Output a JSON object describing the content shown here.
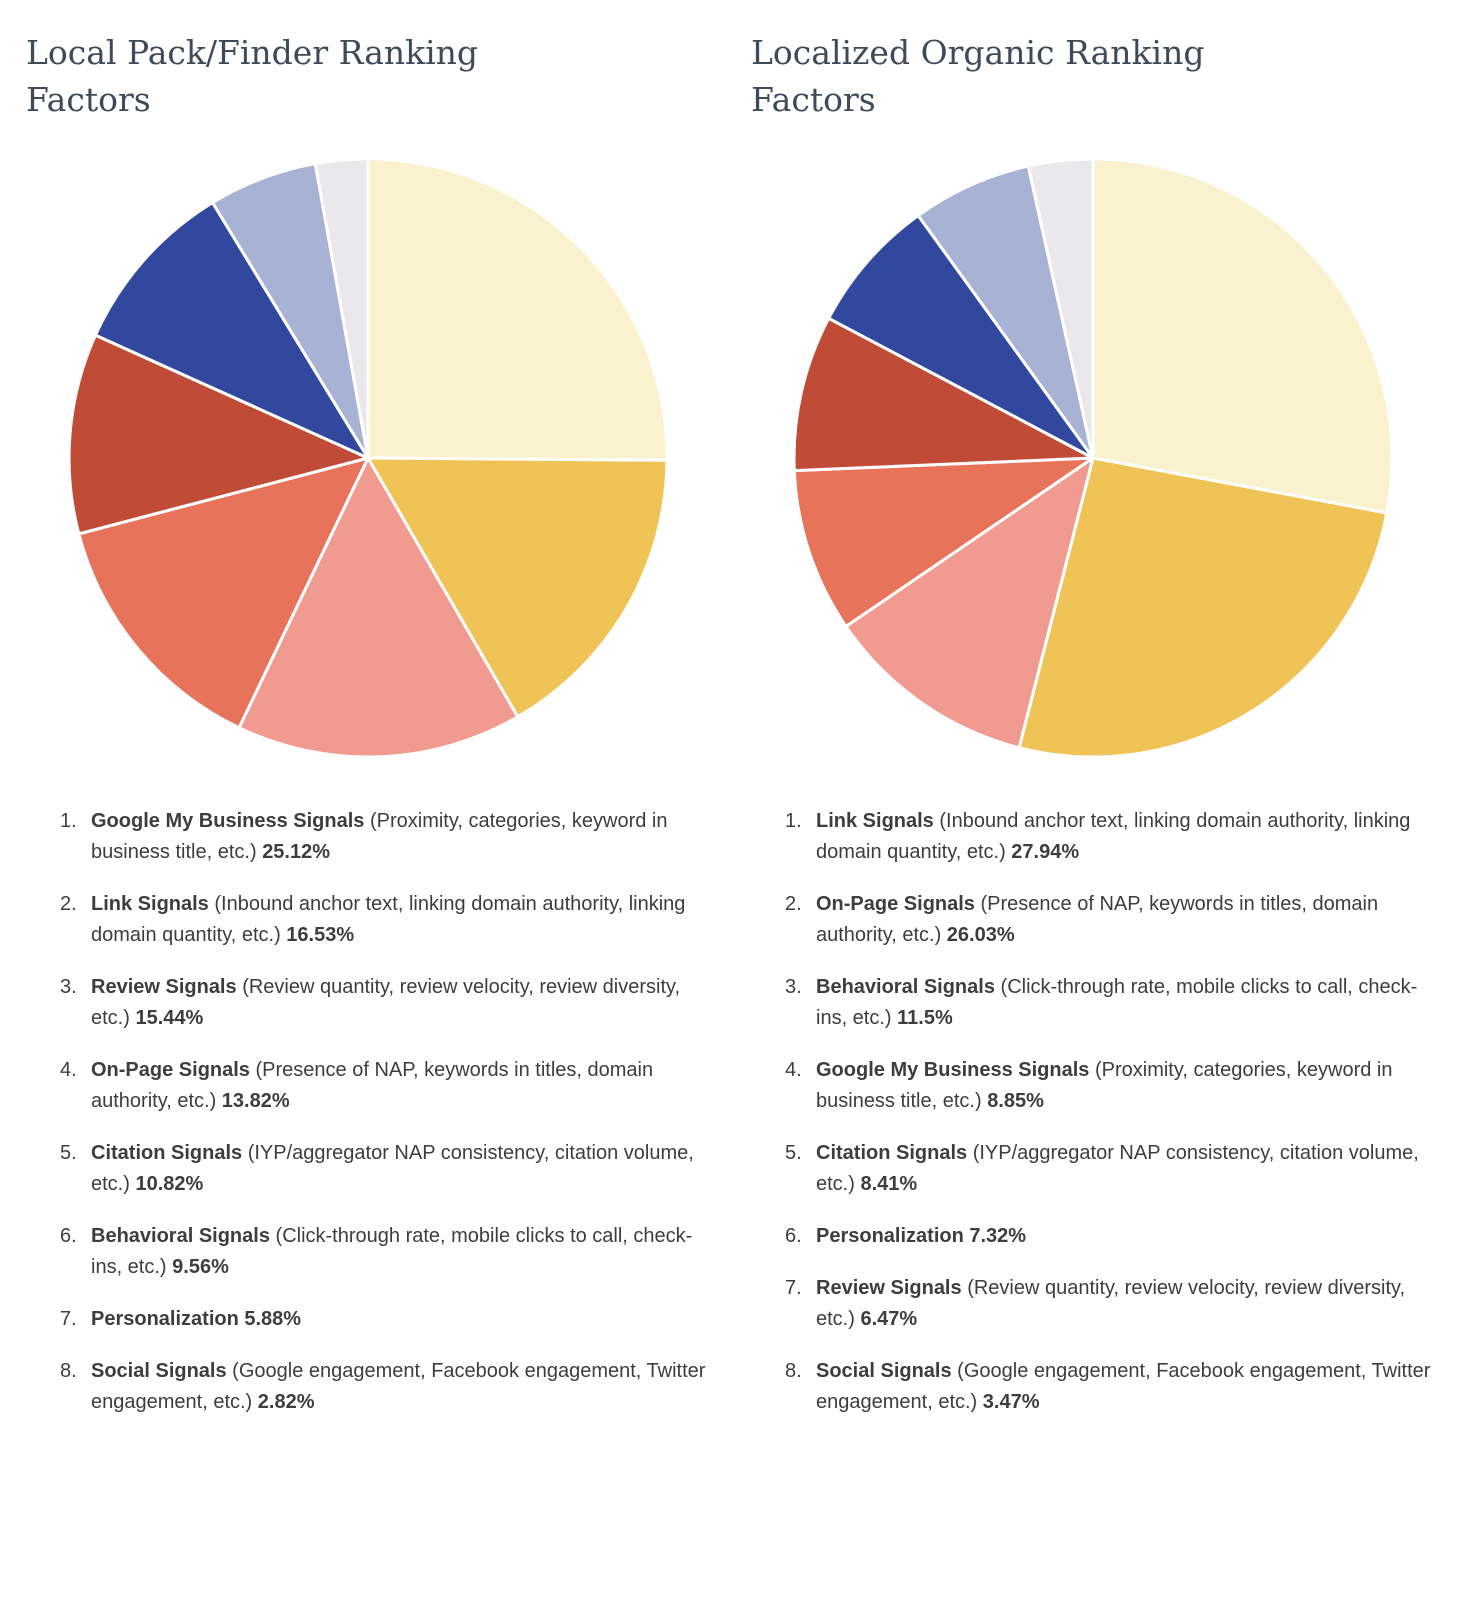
{
  "chart_data": [
    {
      "type": "pie",
      "title": "Local Pack/Finder Ranking Factors",
      "start_angle": "top",
      "direction": "clockwise",
      "legend_position": "bottom",
      "slices": [
        {
          "num": "1.",
          "label": "Google My Business Signals",
          "desc": "(Proximity, categories, keyword in business title, etc.)",
          "value": 25.12,
          "pct_label": "25.12%",
          "color": "#faf2ce"
        },
        {
          "num": "2.",
          "label": "Link Signals",
          "desc": "(Inbound anchor text, linking domain authority, linking domain quantity, etc.)",
          "value": 16.53,
          "pct_label": "16.53%",
          "color": "#f0c357"
        },
        {
          "num": "3.",
          "label": "Review Signals",
          "desc": "(Review quantity, review velocity, review diversity, etc.)",
          "value": 15.44,
          "pct_label": "15.44%",
          "color": "#f19a8f"
        },
        {
          "num": "4.",
          "label": "On-Page Signals",
          "desc": "(Presence of NAP, keywords in titles, domain authority, etc.)",
          "value": 13.82,
          "pct_label": "13.82%",
          "color": "#e8735b"
        },
        {
          "num": "5.",
          "label": "Citation Signals",
          "desc": "(IYP/aggregator NAP consistency, citation volume, etc.)",
          "value": 10.82,
          "pct_label": "10.82%",
          "color": "#c04c38"
        },
        {
          "num": "6.",
          "label": "Behavioral Signals",
          "desc": "(Click-through rate, mobile clicks to call, check-ins, etc.)",
          "value": 9.56,
          "pct_label": "9.56%",
          "color": "#32489e"
        },
        {
          "num": "7.",
          "label": "Personalization",
          "desc": "",
          "value": 5.88,
          "pct_label": "5.88%",
          "color": "#a8b2d5"
        },
        {
          "num": "8.",
          "label": "Social Signals",
          "desc": "(Google engagement, Facebook engagement, Twitter engagement, etc.)",
          "value": 2.82,
          "pct_label": "2.82%",
          "color": "#e9e9eb"
        }
      ]
    },
    {
      "type": "pie",
      "title": "Localized Organic Ranking Factors",
      "start_angle": "top",
      "direction": "clockwise",
      "legend_position": "bottom",
      "slices": [
        {
          "num": "1.",
          "label": "Link Signals",
          "desc": "(Inbound anchor text, linking domain authority, linking domain quantity, etc.)",
          "value": 27.94,
          "pct_label": "27.94%",
          "color": "#faf2ce"
        },
        {
          "num": "2.",
          "label": "On-Page Signals",
          "desc": "(Presence of NAP, keywords in titles, domain authority, etc.)",
          "value": 26.03,
          "pct_label": "26.03%",
          "color": "#f0c357"
        },
        {
          "num": "3.",
          "label": "Behavioral Signals",
          "desc": "(Click-through rate, mobile clicks to call, check-ins, etc.)",
          "value": 11.5,
          "pct_label": "11.5%",
          "color": "#f19a8f"
        },
        {
          "num": "4.",
          "label": "Google My Business Signals",
          "desc": "(Proximity, categories, keyword in business title, etc.)",
          "value": 8.85,
          "pct_label": "8.85%",
          "color": "#e8735b"
        },
        {
          "num": "5.",
          "label": "Citation Signals",
          "desc": "(IYP/aggregator NAP consistency, citation volume, etc.)",
          "value": 8.41,
          "pct_label": "8.41%",
          "color": "#c04c38"
        },
        {
          "num": "6.",
          "label": "Personalization",
          "desc": "",
          "value": 7.32,
          "pct_label": "7.32%",
          "color": "#32489e"
        },
        {
          "num": "7.",
          "label": "Review Signals",
          "desc": "(Review quantity, review velocity, review diversity, etc.)",
          "value": 6.47,
          "pct_label": "6.47%",
          "color": "#a8b2d5"
        },
        {
          "num": "8.",
          "label": "Social Signals",
          "desc": "(Google engagement, Facebook engagement, Twitter engagement, etc.)",
          "value": 3.47,
          "pct_label": "3.47%",
          "color": "#e9e9eb"
        }
      ]
    }
  ],
  "colors": {
    "title_text": "#3e4a59",
    "body_text": "#3d3d3d",
    "background": "#ffffff",
    "slice_divider": "#ffffff"
  }
}
